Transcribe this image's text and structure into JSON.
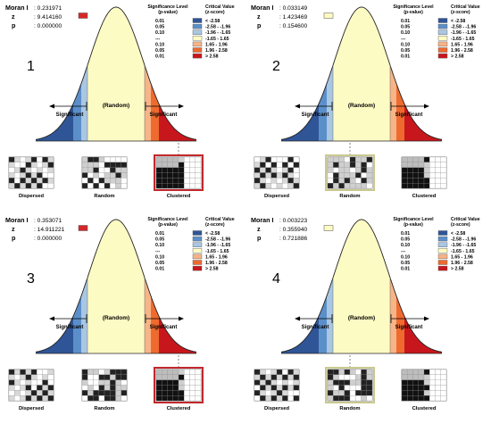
{
  "legend": {
    "sig_header": [
      "Significance Level",
      "(p-value)"
    ],
    "crit_header": [
      "Critical Value",
      "(z-score)"
    ],
    "rows": [
      {
        "p": "0.01",
        "z": "< -2.58",
        "color": "#2f5597"
      },
      {
        "p": "0.05",
        "z": "-2.58 - -1.96",
        "color": "#5b8fc9"
      },
      {
        "p": "0.10",
        "z": "-1.96 - -1.65",
        "color": "#a9c6e2"
      },
      {
        "p": "---",
        "z": "-1.65 - 1.65",
        "color": "#fdfbc4"
      },
      {
        "p": "0.10",
        "z": "1.65 - 1.96",
        "color": "#f7b487"
      },
      {
        "p": "0.05",
        "z": "1.96 - 2.58",
        "color": "#ee6a2f"
      },
      {
        "p": "0.01",
        "z": "> 2.58",
        "color": "#c8171c"
      }
    ]
  },
  "curve_labels": {
    "random": "(Random)",
    "significant_left": "Significant",
    "significant_right": "Significant"
  },
  "thumb_labels": [
    "Dispersed",
    "Random",
    "Clustered"
  ],
  "stat_labels": {
    "moran": "Moran I",
    "z": "z",
    "p": "p"
  },
  "panels": [
    {
      "number": "1",
      "moran": ": 0.231971",
      "z": ": 9.414160",
      "p": ": 0.000000",
      "z_box_color": "#d62728",
      "highlight": 2
    },
    {
      "number": "2",
      "moran": ": 0.033149",
      "z": ": 1.423469",
      "p": ": 0.154600",
      "z_box_color": "#fdfbc4",
      "highlight": 1
    },
    {
      "number": "3",
      "moran": ": 0.353071",
      "z": ": 14.911221",
      "p": ": 0.000000",
      "z_box_color": "#d62728",
      "highlight": 2
    },
    {
      "number": "4",
      "moran": ": 0.003223",
      "z": ": 0.355940",
      "p": ": 0.721886",
      "z_box_color": "#fdfbc4",
      "highlight": 1
    }
  ]
}
